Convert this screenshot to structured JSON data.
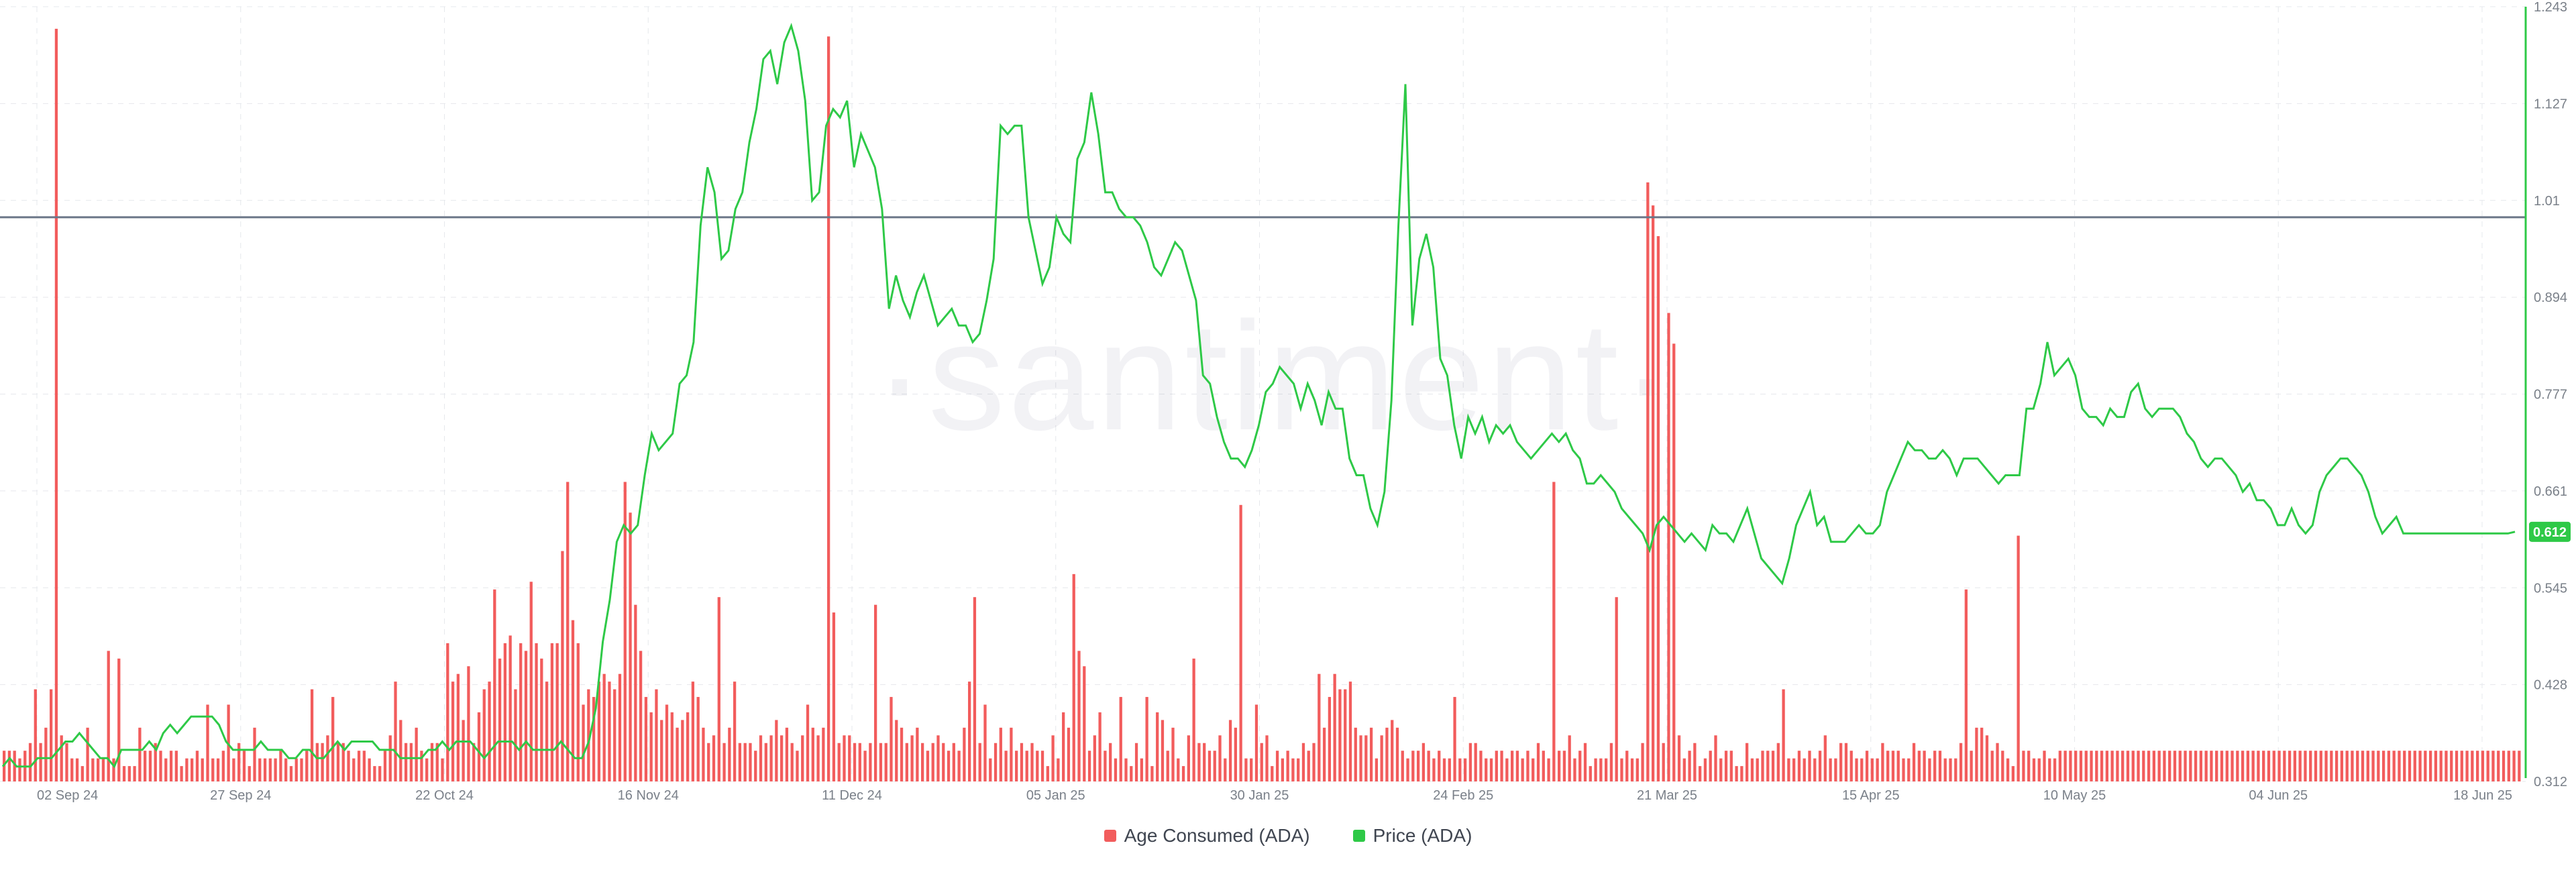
{
  "watermark": "·santiment·",
  "colors": {
    "bars": "#f25c5c",
    "price": "#2ec947",
    "price_badge": "#2ec947",
    "ref_line": "#6b7688",
    "grid": "#e6e8ec",
    "axis_text": "#7a8089"
  },
  "legend": [
    {
      "label": "Age Consumed (ADA)",
      "color": "#f25c5c"
    },
    {
      "label": "Price (ADA)",
      "color": "#2ec947"
    }
  ],
  "price_badge_label": "0.612",
  "chart_data": {
    "type": "bar+line",
    "x_tick_labels": [
      "02 Sep 24",
      "27 Sep 24",
      "22 Oct 24",
      "16 Nov 24",
      "11 Dec 24",
      "05 Jan 25",
      "30 Jan 25",
      "24 Feb 25",
      "21 Mar 25",
      "15 Apr 25",
      "10 May 25",
      "04 Jun 25",
      "18 Jun 25"
    ],
    "y_right_tick_labels": [
      "1.243",
      "1.127",
      "1.01",
      "0.894",
      "0.777",
      "0.661",
      "0.545",
      "0.428",
      "0.312"
    ],
    "y_right_range": [
      0.312,
      1.243
    ],
    "reference_line_price": 0.99,
    "grid": true,
    "legend_position": "bottom",
    "series": [
      {
        "name": "Age Consumed (ADA)",
        "kind": "bar",
        "axis": "hidden-left",
        "ymax": 1.0,
        "values": [
          0.04,
          0.04,
          0.04,
          0.03,
          0.04,
          0.05,
          0.12,
          0.05,
          0.07,
          0.12,
          0.98,
          0.06,
          0.05,
          0.03,
          0.03,
          0.02,
          0.07,
          0.03,
          0.03,
          0.03,
          0.17,
          0.03,
          0.16,
          0.02,
          0.02,
          0.02,
          0.07,
          0.04,
          0.04,
          0.05,
          0.04,
          0.03,
          0.04,
          0.04,
          0.02,
          0.03,
          0.03,
          0.04,
          0.03,
          0.1,
          0.03,
          0.03,
          0.04,
          0.1,
          0.03,
          0.05,
          0.04,
          0.02,
          0.07,
          0.03,
          0.03,
          0.03,
          0.03,
          0.04,
          0.03,
          0.02,
          0.03,
          0.03,
          0.04,
          0.12,
          0.05,
          0.05,
          0.06,
          0.11,
          0.05,
          0.05,
          0.04,
          0.03,
          0.04,
          0.04,
          0.03,
          0.02,
          0.02,
          0.04,
          0.06,
          0.13,
          0.08,
          0.05,
          0.05,
          0.07,
          0.04,
          0.03,
          0.05,
          0.05,
          0.03,
          0.18,
          0.13,
          0.14,
          0.08,
          0.15,
          0.05,
          0.09,
          0.12,
          0.13,
          0.25,
          0.16,
          0.18,
          0.19,
          0.12,
          0.18,
          0.17,
          0.26,
          0.18,
          0.16,
          0.13,
          0.18,
          0.18,
          0.3,
          0.39,
          0.21,
          0.18,
          0.1,
          0.12,
          0.11,
          0.13,
          0.14,
          0.13,
          0.12,
          0.14,
          0.39,
          0.35,
          0.23,
          0.17,
          0.11,
          0.09,
          0.12,
          0.08,
          0.1,
          0.09,
          0.07,
          0.08,
          0.09,
          0.13,
          0.11,
          0.07,
          0.05,
          0.06,
          0.24,
          0.05,
          0.07,
          0.13,
          0.05,
          0.05,
          0.05,
          0.04,
          0.06,
          0.05,
          0.06,
          0.08,
          0.06,
          0.07,
          0.05,
          0.04,
          0.06,
          0.1,
          0.07,
          0.06,
          0.07,
          0.97,
          0.22,
          0.05,
          0.06,
          0.06,
          0.05,
          0.05,
          0.04,
          0.05,
          0.23,
          0.05,
          0.05,
          0.11,
          0.08,
          0.07,
          0.05,
          0.06,
          0.07,
          0.05,
          0.04,
          0.05,
          0.06,
          0.05,
          0.04,
          0.05,
          0.04,
          0.07,
          0.13,
          0.24,
          0.05,
          0.1,
          0.03,
          0.05,
          0.07,
          0.04,
          0.07,
          0.04,
          0.05,
          0.04,
          0.05,
          0.04,
          0.04,
          0.02,
          0.06,
          0.03,
          0.09,
          0.07,
          0.27,
          0.17,
          0.15,
          0.04,
          0.06,
          0.09,
          0.04,
          0.05,
          0.03,
          0.11,
          0.03,
          0.02,
          0.05,
          0.03,
          0.11,
          0.02,
          0.09,
          0.08,
          0.04,
          0.07,
          0.03,
          0.02,
          0.06,
          0.16,
          0.05,
          0.05,
          0.04,
          0.04,
          0.06,
          0.03,
          0.08,
          0.07,
          0.36,
          0.03,
          0.03,
          0.1,
          0.05,
          0.06,
          0.02,
          0.04,
          0.03,
          0.04,
          0.03,
          0.03,
          0.05,
          0.04,
          0.05,
          0.14,
          0.07,
          0.11,
          0.14,
          0.12,
          0.12,
          0.13,
          0.07,
          0.06,
          0.06,
          0.07,
          0.03,
          0.06,
          0.07,
          0.08,
          0.07,
          0.04,
          0.03,
          0.04,
          0.04,
          0.05,
          0.04,
          0.03,
          0.04,
          0.03,
          0.03,
          0.11,
          0.03,
          0.03,
          0.05,
          0.05,
          0.04,
          0.03,
          0.03,
          0.04,
          0.04,
          0.03,
          0.04,
          0.04,
          0.03,
          0.04,
          0.03,
          0.05,
          0.04,
          0.03,
          0.39,
          0.04,
          0.04,
          0.06,
          0.03,
          0.04,
          0.05,
          0.02,
          0.03,
          0.03,
          0.03,
          0.05,
          0.24,
          0.03,
          0.04,
          0.03,
          0.03,
          0.05,
          0.78,
          0.75,
          0.71,
          0.05,
          0.61,
          0.57,
          0.06,
          0.03,
          0.04,
          0.05,
          0.02,
          0.03,
          0.04,
          0.06,
          0.03,
          0.04,
          0.04,
          0.02,
          0.02,
          0.05,
          0.03,
          0.03,
          0.04,
          0.04,
          0.04,
          0.05,
          0.12,
          0.03,
          0.03,
          0.04,
          0.03,
          0.04,
          0.03,
          0.04,
          0.06,
          0.03,
          0.03,
          0.05,
          0.05,
          0.04,
          0.03,
          0.03,
          0.04,
          0.03,
          0.03,
          0.05,
          0.04,
          0.04,
          0.04,
          0.03,
          0.03,
          0.05,
          0.04,
          0.04,
          0.03,
          0.04,
          0.04,
          0.03,
          0.03,
          0.03,
          0.05,
          0.25,
          0.04,
          0.07,
          0.07,
          0.06,
          0.04,
          0.05,
          0.04,
          0.03,
          0.02,
          0.32,
          0.04,
          0.04,
          0.03,
          0.03,
          0.04,
          0.03,
          0.03,
          0.04,
          0.04,
          0.04,
          0.04,
          0.04,
          0.04,
          0.04,
          0.04,
          0.04,
          0.04,
          0.04,
          0.04,
          0.04,
          0.04,
          0.04,
          0.04,
          0.04,
          0.04,
          0.04,
          0.04,
          0.04,
          0.04,
          0.04,
          0.04,
          0.04,
          0.04,
          0.04,
          0.04,
          0.04,
          0.04,
          0.04,
          0.04,
          0.04,
          0.04,
          0.04,
          0.04,
          0.04,
          0.04,
          0.04,
          0.04,
          0.04,
          0.04,
          0.04,
          0.04,
          0.04,
          0.04,
          0.04,
          0.04,
          0.04,
          0.04,
          0.04,
          0.04,
          0.04,
          0.04,
          0.04,
          0.04,
          0.04,
          0.04,
          0.04,
          0.04,
          0.04,
          0.04,
          0.04,
          0.04,
          0.04,
          0.04,
          0.04,
          0.04,
          0.04,
          0.04,
          0.04,
          0.04,
          0.04,
          0.04,
          0.04,
          0.04,
          0.04,
          0.04,
          0.04,
          0.04,
          0.04,
          0.04,
          0.04,
          0.04,
          0.04,
          0.04,
          0.04,
          0.04,
          0.04
        ]
      },
      {
        "name": "Price (ADA)",
        "kind": "line",
        "axis": "right",
        "values": [
          0.33,
          0.34,
          0.33,
          0.33,
          0.33,
          0.34,
          0.34,
          0.34,
          0.35,
          0.36,
          0.36,
          0.37,
          0.36,
          0.35,
          0.34,
          0.34,
          0.33,
          0.35,
          0.35,
          0.35,
          0.35,
          0.36,
          0.35,
          0.37,
          0.38,
          0.37,
          0.38,
          0.39,
          0.39,
          0.39,
          0.39,
          0.38,
          0.36,
          0.35,
          0.35,
          0.35,
          0.35,
          0.36,
          0.35,
          0.35,
          0.35,
          0.34,
          0.34,
          0.35,
          0.35,
          0.34,
          0.34,
          0.35,
          0.36,
          0.35,
          0.36,
          0.36,
          0.36,
          0.36,
          0.35,
          0.35,
          0.35,
          0.34,
          0.34,
          0.34,
          0.34,
          0.35,
          0.35,
          0.36,
          0.35,
          0.36,
          0.36,
          0.36,
          0.35,
          0.34,
          0.35,
          0.36,
          0.36,
          0.36,
          0.35,
          0.36,
          0.35,
          0.35,
          0.35,
          0.35,
          0.36,
          0.35,
          0.34,
          0.34,
          0.36,
          0.4,
          0.48,
          0.53,
          0.6,
          0.62,
          0.61,
          0.62,
          0.68,
          0.73,
          0.71,
          0.72,
          0.73,
          0.79,
          0.8,
          0.84,
          0.98,
          1.05,
          1.02,
          0.94,
          0.95,
          1.0,
          1.02,
          1.08,
          1.12,
          1.18,
          1.19,
          1.15,
          1.2,
          1.22,
          1.19,
          1.13,
          1.01,
          1.02,
          1.1,
          1.12,
          1.11,
          1.13,
          1.05,
          1.09,
          1.07,
          1.05,
          1.0,
          0.88,
          0.92,
          0.89,
          0.87,
          0.9,
          0.92,
          0.89,
          0.86,
          0.87,
          0.88,
          0.86,
          0.86,
          0.84,
          0.85,
          0.89,
          0.94,
          1.1,
          1.09,
          1.1,
          1.1,
          0.99,
          0.95,
          0.91,
          0.93,
          0.99,
          0.97,
          0.96,
          1.06,
          1.08,
          1.14,
          1.09,
          1.02,
          1.02,
          1.0,
          0.99,
          0.99,
          0.98,
          0.96,
          0.93,
          0.92,
          0.94,
          0.96,
          0.95,
          0.92,
          0.89,
          0.8,
          0.79,
          0.75,
          0.72,
          0.7,
          0.7,
          0.69,
          0.71,
          0.74,
          0.78,
          0.79,
          0.81,
          0.8,
          0.79,
          0.76,
          0.79,
          0.77,
          0.74,
          0.78,
          0.76,
          0.76,
          0.7,
          0.68,
          0.68,
          0.64,
          0.62,
          0.66,
          0.77,
          0.98,
          1.15,
          0.86,
          0.94,
          0.97,
          0.93,
          0.82,
          0.8,
          0.74,
          0.7,
          0.75,
          0.73,
          0.75,
          0.72,
          0.74,
          0.73,
          0.74,
          0.72,
          0.71,
          0.7,
          0.71,
          0.72,
          0.73,
          0.72,
          0.73,
          0.71,
          0.7,
          0.67,
          0.67,
          0.68,
          0.67,
          0.66,
          0.64,
          0.63,
          0.62,
          0.61,
          0.59,
          0.62,
          0.63,
          0.62,
          0.61,
          0.6,
          0.61,
          0.6,
          0.59,
          0.62,
          0.61,
          0.61,
          0.6,
          0.62,
          0.64,
          0.61,
          0.58,
          0.57,
          0.56,
          0.55,
          0.58,
          0.62,
          0.64,
          0.66,
          0.62,
          0.63,
          0.6,
          0.6,
          0.6,
          0.61,
          0.62,
          0.61,
          0.61,
          0.62,
          0.66,
          0.68,
          0.7,
          0.72,
          0.71,
          0.71,
          0.7,
          0.7,
          0.71,
          0.7,
          0.68,
          0.7,
          0.7,
          0.7,
          0.69,
          0.68,
          0.67,
          0.68,
          0.68,
          0.68,
          0.76,
          0.76,
          0.79,
          0.84,
          0.8,
          0.81,
          0.82,
          0.8,
          0.76,
          0.75,
          0.75,
          0.74,
          0.76,
          0.75,
          0.75,
          0.78,
          0.79,
          0.76,
          0.75,
          0.76,
          0.76,
          0.76,
          0.75,
          0.73,
          0.72,
          0.7,
          0.69,
          0.7,
          0.7,
          0.69,
          0.68,
          0.66,
          0.67,
          0.65,
          0.65,
          0.64,
          0.62,
          0.62,
          0.64,
          0.62,
          0.61,
          0.62,
          0.66,
          0.68,
          0.69,
          0.7,
          0.7,
          0.69,
          0.68,
          0.66,
          0.63,
          0.61,
          0.62,
          0.63,
          0.61,
          0.61,
          0.61,
          0.61,
          0.61,
          0.61,
          0.61,
          0.61,
          0.61,
          0.61,
          0.61,
          0.61,
          0.61,
          0.61,
          0.61,
          0.61,
          0.612
        ]
      }
    ]
  }
}
